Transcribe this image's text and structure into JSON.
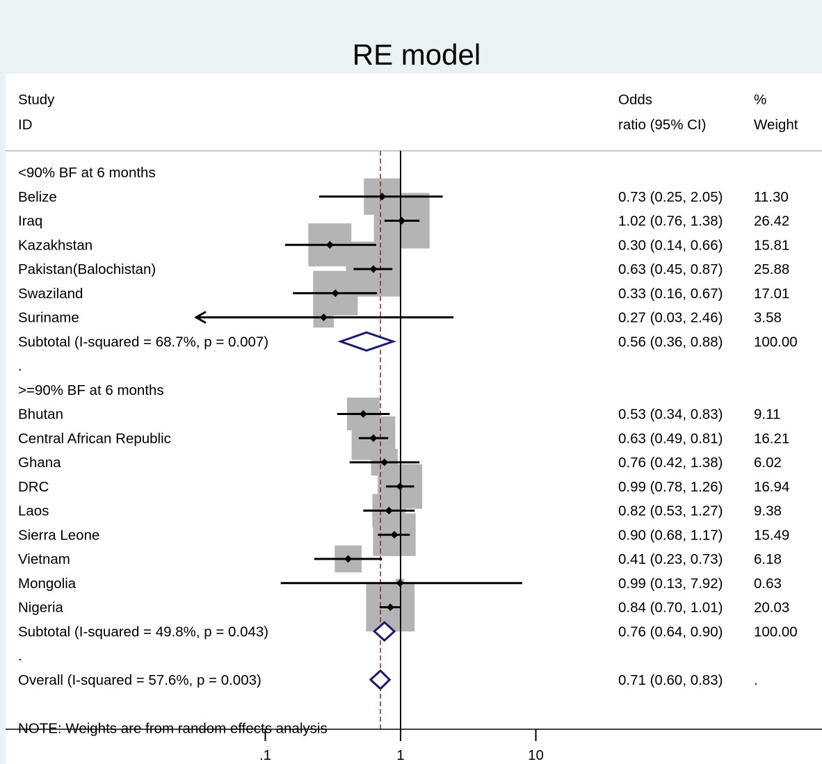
{
  "chart_data": {
    "type": "forest",
    "title": "RE model",
    "x_scale": "log",
    "x_ticks": [
      {
        "value": 0.1,
        "label": ".1"
      },
      {
        "value": 1,
        "label": "1"
      },
      {
        "value": 10,
        "label": "10"
      }
    ],
    "null_line": 1,
    "overall_estimate_line": 0.71,
    "headers": {
      "study_line1": "Study",
      "study_line2": "ID",
      "or_line1": "Odds",
      "or_line2": "ratio (95% CI)",
      "weight_line1": "%",
      "weight_line2": "Weight"
    },
    "rows": [
      {
        "kind": "group",
        "label": "<90% BF at 6 months"
      },
      {
        "kind": "study",
        "label": "Belize",
        "or": 0.73,
        "lo": 0.25,
        "hi": 2.05,
        "or_text": "0.73 (0.25, 2.05)",
        "weight": "11.30"
      },
      {
        "kind": "study",
        "label": "Iraq",
        "or": 1.02,
        "lo": 0.76,
        "hi": 1.38,
        "or_text": "1.02 (0.76, 1.38)",
        "weight": "26.42"
      },
      {
        "kind": "study",
        "label": "Kazakhstan",
        "or": 0.3,
        "lo": 0.14,
        "hi": 0.66,
        "or_text": "0.30 (0.14, 0.66)",
        "weight": "15.81"
      },
      {
        "kind": "study",
        "label": "Pakistan(Balochistan)",
        "or": 0.63,
        "lo": 0.45,
        "hi": 0.87,
        "or_text": "0.63 (0.45, 0.87)",
        "weight": "25.88"
      },
      {
        "kind": "study",
        "label": "Swaziland",
        "or": 0.33,
        "lo": 0.16,
        "hi": 0.67,
        "or_text": "0.33 (0.16, 0.67)",
        "weight": "17.01"
      },
      {
        "kind": "study",
        "label": "Suriname",
        "or": 0.27,
        "lo": 0.03,
        "hi": 2.46,
        "or_text": "0.27 (0.03, 2.46)",
        "weight": "3.58",
        "arrow_left": true
      },
      {
        "kind": "subtotal",
        "label": "Subtotal  (I-squared = 68.7%, p = 0.007)",
        "or": 0.56,
        "lo": 0.36,
        "hi": 0.88,
        "or_text": "0.56 (0.36, 0.88)",
        "weight": "100.00"
      },
      {
        "kind": "blank",
        "label": "."
      },
      {
        "kind": "group",
        "label": ">=90% BF at 6 months"
      },
      {
        "kind": "study",
        "label": "Bhutan",
        "or": 0.53,
        "lo": 0.34,
        "hi": 0.83,
        "or_text": "0.53 (0.34, 0.83)",
        "weight": "9.11"
      },
      {
        "kind": "study",
        "label": "Central African Republic",
        "or": 0.63,
        "lo": 0.49,
        "hi": 0.81,
        "or_text": "0.63 (0.49, 0.81)",
        "weight": "16.21"
      },
      {
        "kind": "study",
        "label": "Ghana",
        "or": 0.76,
        "lo": 0.42,
        "hi": 1.38,
        "or_text": "0.76 (0.42, 1.38)",
        "weight": "6.02"
      },
      {
        "kind": "study",
        "label": "DRC",
        "or": 0.99,
        "lo": 0.78,
        "hi": 1.26,
        "or_text": "0.99 (0.78, 1.26)",
        "weight": "16.94"
      },
      {
        "kind": "study",
        "label": "Laos",
        "or": 0.82,
        "lo": 0.53,
        "hi": 1.27,
        "or_text": "0.82 (0.53, 1.27)",
        "weight": "9.38"
      },
      {
        "kind": "study",
        "label": "Sierra Leone",
        "or": 0.9,
        "lo": 0.68,
        "hi": 1.17,
        "or_text": "0.90 (0.68, 1.17)",
        "weight": "15.49"
      },
      {
        "kind": "study",
        "label": "Vietnam",
        "or": 0.41,
        "lo": 0.23,
        "hi": 0.73,
        "or_text": "0.41 (0.23, 0.73)",
        "weight": "6.18"
      },
      {
        "kind": "study",
        "label": "Mongolia",
        "or": 0.99,
        "lo": 0.13,
        "hi": 7.92,
        "or_text": "0.99 (0.13, 7.92)",
        "weight": "0.63"
      },
      {
        "kind": "study",
        "label": "Nigeria",
        "or": 0.84,
        "lo": 0.7,
        "hi": 1.01,
        "or_text": "0.84 (0.70, 1.01)",
        "weight": "20.03"
      },
      {
        "kind": "subtotal",
        "label": "Subtotal  (I-squared = 49.8%, p = 0.043)",
        "or": 0.76,
        "lo": 0.64,
        "hi": 0.9,
        "or_text": "0.76 (0.64, 0.90)",
        "weight": "100.00"
      },
      {
        "kind": "blank",
        "label": "."
      },
      {
        "kind": "overall",
        "label": "Overall  (I-squared = 57.6%, p = 0.003)",
        "or": 0.71,
        "lo": 0.6,
        "hi": 0.83,
        "or_text": "0.71 (0.60, 0.83)",
        "weight": "."
      },
      {
        "kind": "blank",
        "label": ""
      },
      {
        "kind": "note",
        "label": "NOTE: Weights are from random effects analysis"
      }
    ],
    "colors": {
      "background": "#eaf2f3",
      "panel": "#ffffff",
      "weight_box": "#b4b4b4",
      "diamond": "#1a1a6e",
      "overall_line": "#7a2a2a",
      "text": "#000000"
    }
  }
}
